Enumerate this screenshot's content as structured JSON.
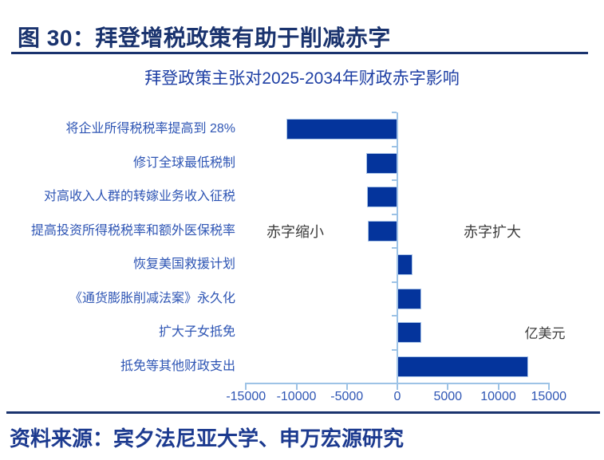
{
  "page": {
    "figure_title": "图 30：拜登增税政策有助于削减赤字",
    "source_label": "资料来源：宾夕法尼亚大学、申万宏源研究"
  },
  "chart_data": {
    "type": "bar",
    "orientation": "horizontal",
    "title": "拜登政策主张对2025-2034年财政赤字影响",
    "unit_label": "亿美元",
    "categories": [
      "将企业所得税税率提高到 28%",
      "修订全球最低税制",
      "对高收入人群的转嫁业务收入征税",
      "提高投资所得税税率和额外医保税率",
      "恢复美国救援计划",
      "《通货膨胀削减法案》永久化",
      "扩大子女抵免",
      "抵免等其他财政支出"
    ],
    "values": [
      -11000,
      -3100,
      -3000,
      -2900,
      1500,
      2400,
      2400,
      13000
    ],
    "xlim": [
      -15000,
      15000
    ],
    "x_ticks": [
      -15000,
      -10000,
      -5000,
      0,
      5000,
      10000,
      15000
    ],
    "annotations": {
      "left_of_axis": "赤字缩小",
      "right_of_axis": "赤字扩大"
    },
    "grid": "off",
    "legend": "none",
    "colors": {
      "bar_fill": "#04349c",
      "bar_border": "#a9c4e8",
      "axis_line": "#9dc3e6",
      "tick_label": "#2e55b4",
      "category_label": "#2e55b4",
      "chart_title": "#1e3fa4",
      "figure_title": "#1a336e",
      "divider": "#1a336e",
      "source_text": "#1c3a8f",
      "annotation_text": "#3c3c3c"
    }
  }
}
